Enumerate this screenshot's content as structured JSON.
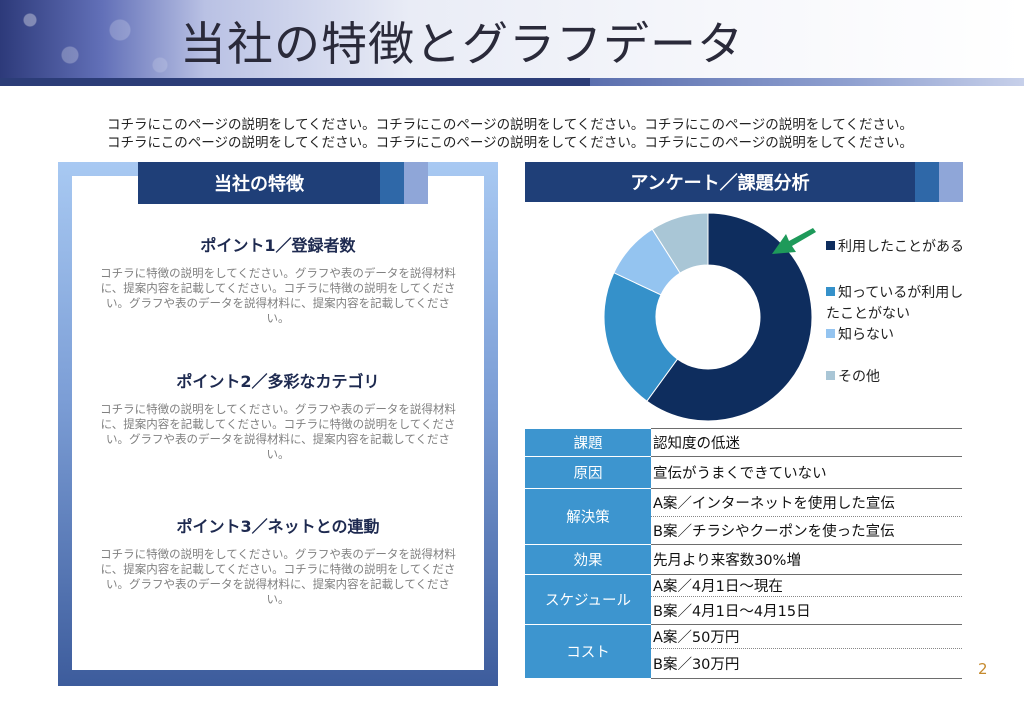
{
  "header": {
    "title": "当社の特徴とグラフデータ"
  },
  "intro": {
    "line1": "コチラにこのページの説明をしてください。コチラにこのページの説明をしてください。コチラにこのページの説明をしてください。",
    "line2": "コチラにこのページの説明をしてください。コチラにこのページの説明をしてください。コチラにこのページの説明をしてください。"
  },
  "left_panel": {
    "heading": "当社の特徴",
    "points": [
      {
        "title": "ポイント1／登録者数",
        "body": "コチラに特徴の説明をしてください。グラフや表のデータを説得材料に、提案内容を記載してください。コチラに特徴の説明をしてください。グラフや表のデータを説得材料に、提案内容を記載してください。"
      },
      {
        "title": "ポイント2／多彩なカテゴリ",
        "body": "コチラに特徴の説明をしてください。グラフや表のデータを説得材料に、提案内容を記載してください。コチラに特徴の説明をしてください。グラフや表のデータを説得材料に、提案内容を記載してください。"
      },
      {
        "title": "ポイント3／ネットとの連動",
        "body": "コチラに特徴の説明をしてください。グラフや表のデータを説得材料に、提案内容を記載してください。コチラに特徴の説明をしてください。グラフや表のデータを説得材料に、提案内容を記載してください。"
      }
    ]
  },
  "right_panel": {
    "heading": "アンケート／課題分析"
  },
  "chart_data": {
    "type": "pie",
    "donut": true,
    "categories": [
      "利用したことがある",
      "知っているが利用したことがない",
      "知らない",
      "その他"
    ],
    "values": [
      60,
      22,
      9,
      9
    ],
    "colors": [
      "#0e2d5e",
      "#3591ca",
      "#94c4f0",
      "#a9c6d6"
    ],
    "legend_position": "right",
    "annotation": "green arrow pointing to 利用したことがある slice"
  },
  "table": {
    "rows": [
      {
        "label": "課題",
        "values": [
          "認知度の低迷"
        ]
      },
      {
        "label": "原因",
        "values": [
          "宣伝がうまくできていない"
        ]
      },
      {
        "label": "解決策",
        "values": [
          "A案／インターネットを使用した宣伝",
          "B案／チラシやクーポンを使った宣伝"
        ]
      },
      {
        "label": "効果",
        "values": [
          "先月より来客数30%増"
        ]
      },
      {
        "label": "スケジュール",
        "values": [
          "A案／4月1日～現在",
          "B案／4月1日～4月15日"
        ]
      },
      {
        "label": "コスト",
        "values": [
          "A案／50万円",
          "B案／30万円"
        ]
      }
    ]
  },
  "page_number": "2",
  "colors": {
    "navy": "#1f3f78",
    "accent_blue": "#2f68a8",
    "light_blue": "#8fa6d8",
    "table_header": "#3d95cf",
    "arrow_green": "#1e9a5a"
  }
}
